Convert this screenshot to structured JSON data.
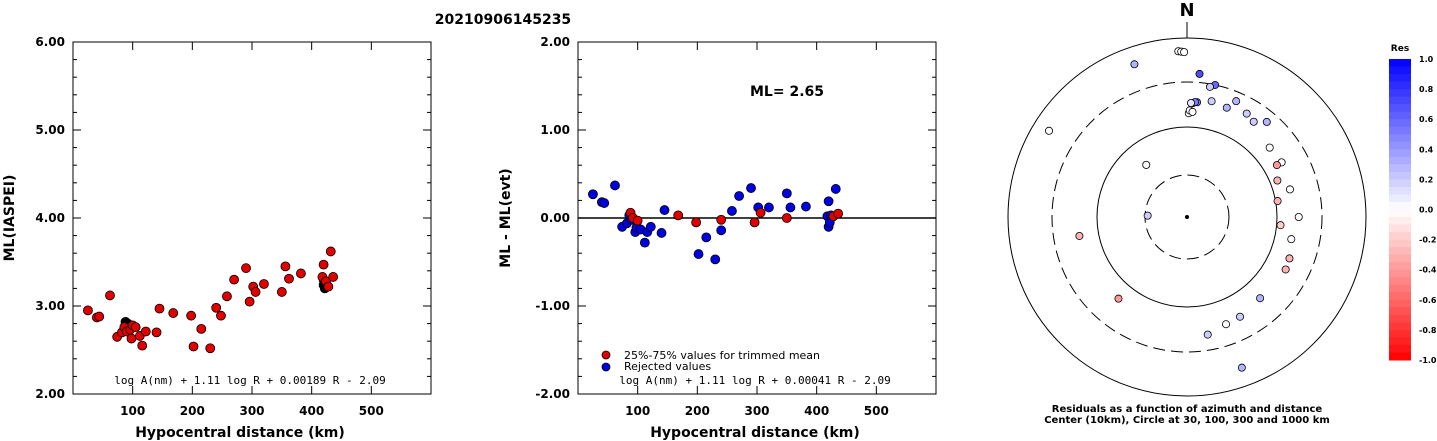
{
  "title": "20210906145235",
  "colors": {
    "trimmed": "#e00000",
    "rejected": "#0000e0",
    "black": "#000000"
  },
  "chart_data": [
    {
      "type": "scatter",
      "xlabel": "Hypocentral distance (km)",
      "ylabel": "ML(IASPEI)",
      "xlim": [
        0,
        600
      ],
      "ylim": [
        2.0,
        6.0
      ],
      "xticks": [
        "100",
        "200",
        "300",
        "400",
        "500"
      ],
      "yticks": [
        "2.00",
        "3.00",
        "4.00",
        "5.00",
        "6.00"
      ],
      "formula": "log A(nm) + 1.11 log R + 0.00189 R - 2.09",
      "black_points": [
        [
          88,
          2.82
        ],
        [
          92,
          2.8
        ],
        [
          420,
          3.3
        ],
        [
          420,
          3.24
        ],
        [
          422,
          3.2
        ]
      ],
      "red_points": [
        [
          25,
          2.95
        ],
        [
          40,
          2.87
        ],
        [
          44,
          2.88
        ],
        [
          62,
          3.12
        ],
        [
          74,
          2.65
        ],
        [
          82,
          2.7
        ],
        [
          86,
          2.76
        ],
        [
          90,
          2.71
        ],
        [
          96,
          2.73
        ],
        [
          98,
          2.63
        ],
        [
          100,
          2.78
        ],
        [
          105,
          2.76
        ],
        [
          112,
          2.66
        ],
        [
          116,
          2.55
        ],
        [
          122,
          2.71
        ],
        [
          140,
          2.7
        ],
        [
          145,
          2.97
        ],
        [
          168,
          2.92
        ],
        [
          198,
          2.89
        ],
        [
          202,
          2.54
        ],
        [
          215,
          2.74
        ],
        [
          230,
          2.52
        ],
        [
          240,
          2.98
        ],
        [
          248,
          2.89
        ],
        [
          258,
          3.11
        ],
        [
          270,
          3.3
        ],
        [
          290,
          3.43
        ],
        [
          296,
          3.05
        ],
        [
          302,
          3.22
        ],
        [
          306,
          3.16
        ],
        [
          320,
          3.25
        ],
        [
          350,
          3.16
        ],
        [
          356,
          3.45
        ],
        [
          362,
          3.31
        ],
        [
          382,
          3.37
        ],
        [
          418,
          3.33
        ],
        [
          420,
          3.47
        ],
        [
          424,
          3.28
        ],
        [
          428,
          3.22
        ],
        [
          432,
          3.62
        ],
        [
          436,
          3.33
        ]
      ]
    },
    {
      "type": "scatter",
      "xlabel": "Hypocentral distance (km)",
      "ylabel": "ML - ML(evt)",
      "xlim": [
        0,
        600
      ],
      "ylim": [
        -2.0,
        2.0
      ],
      "xticks": [
        "100",
        "200",
        "300",
        "400",
        "500"
      ],
      "yticks": [
        "-2.00",
        "-1.00",
        "0.00",
        "1.00",
        "2.00"
      ],
      "ml_label": "ML= 2.65",
      "formula": "log A(nm) + 1.11 log R + 0.00041 R - 2.09",
      "legend": [
        {
          "label": "25%-75% values for trimmed mean",
          "color": "#e00000"
        },
        {
          "label": "Rejected values",
          "color": "#0000e0"
        }
      ],
      "rejected_points": [
        [
          25,
          0.27
        ],
        [
          40,
          0.18
        ],
        [
          44,
          0.17
        ],
        [
          62,
          0.37
        ],
        [
          74,
          -0.1
        ],
        [
          82,
          -0.06
        ],
        [
          86,
          0.03
        ],
        [
          90,
          -0.02
        ],
        [
          96,
          -0.16
        ],
        [
          98,
          -0.11
        ],
        [
          105,
          -0.13
        ],
        [
          112,
          -0.28
        ],
        [
          116,
          -0.16
        ],
        [
          122,
          -0.1
        ],
        [
          140,
          -0.17
        ],
        [
          145,
          0.09
        ],
        [
          202,
          -0.41
        ],
        [
          215,
          -0.22
        ],
        [
          230,
          -0.47
        ],
        [
          240,
          -0.14
        ],
        [
          258,
          0.08
        ],
        [
          270,
          0.25
        ],
        [
          290,
          0.34
        ],
        [
          302,
          0.12
        ],
        [
          320,
          0.12
        ],
        [
          350,
          0.28
        ],
        [
          356,
          0.12
        ],
        [
          382,
          0.13
        ],
        [
          418,
          0.02
        ],
        [
          420,
          0.19
        ],
        [
          420,
          -0.1
        ],
        [
          422,
          -0.05
        ],
        [
          424,
          0.03
        ],
        [
          432,
          0.33
        ]
      ],
      "trimmed_points": [
        [
          88,
          0.06
        ],
        [
          92,
          0.0
        ],
        [
          100,
          -0.03
        ],
        [
          168,
          0.03
        ],
        [
          198,
          -0.05
        ],
        [
          240,
          -0.02
        ],
        [
          296,
          -0.05
        ],
        [
          306,
          0.06
        ],
        [
          350,
          0.0
        ],
        [
          428,
          0.02
        ],
        [
          436,
          0.05
        ]
      ]
    },
    {
      "type": "polar",
      "north_label": "N",
      "caption_line1": "Residuals as a function of azimuth and distance",
      "caption_line2": "Center (10km), Circle at 30, 100, 300 and 1000 km",
      "colorbar_title": "Res",
      "colorbar_ticks": [
        "1.0",
        "0.8",
        "0.6",
        "0.4",
        "0.2",
        "0.0",
        "-0.2",
        "-0.4",
        "-0.6",
        "-0.8",
        "-1.0"
      ],
      "stations": [
        [
          0.0,
          357,
          0.0
        ],
        [
          0.0,
          358,
          0.0
        ],
        [
          0.0,
          359,
          0.0
        ],
        [
          0.3,
          341,
          0.3
        ],
        [
          0.7,
          5,
          0.32
        ],
        [
          0.6,
          12,
          0.28
        ],
        [
          0.5,
          5,
          0.0
        ],
        [
          0.6,
          3,
          0.0
        ],
        [
          0.5,
          4,
          0.0
        ],
        [
          0.2,
          12,
          -0.15
        ],
        [
          0.3,
          20,
          -0.2
        ],
        [
          0.2,
          10,
          0.2
        ],
        [
          0.0,
          1,
          0.0
        ],
        [
          0.0,
          1.5,
          0.0
        ],
        [
          0.1,
          2,
          -0.1
        ],
        [
          0.0,
          3,
          0.0
        ],
        [
          0.2,
          30,
          0.3
        ],
        [
          0.3,
          40,
          0.28
        ],
        [
          0.0,
          50,
          0.0
        ],
        [
          0.3,
          23,
          0.3
        ],
        [
          0.2,
          35,
          0.2
        ],
        [
          0.0,
          60,
          0.0
        ],
        [
          -0.3,
          68,
          -0.25
        ],
        [
          -0.4,
          60,
          -0.35
        ],
        [
          0.0,
          90,
          0.0
        ],
        [
          -0.3,
          80,
          -0.3
        ],
        [
          0.0,
          75,
          0.0
        ],
        [
          -0.2,
          95,
          -0.2
        ],
        [
          0.0,
          102,
          0.0
        ],
        [
          -0.3,
          112,
          -0.35
        ],
        [
          -0.3,
          118,
          -0.3
        ],
        [
          0.3,
          138,
          0.3
        ],
        [
          0.2,
          152,
          0.2
        ],
        [
          0.0,
          160,
          0.0
        ],
        [
          0.3,
          160,
          0.3
        ],
        [
          0.2,
          170,
          0.2
        ],
        [
          -0.4,
          220,
          -0.4
        ],
        [
          -0.3,
          260,
          -0.3
        ],
        [
          0.2,
          272,
          0.2
        ],
        [
          0.0,
          302,
          0.0
        ],
        [
          0.0,
          322,
          0.0
        ]
      ]
    }
  ]
}
